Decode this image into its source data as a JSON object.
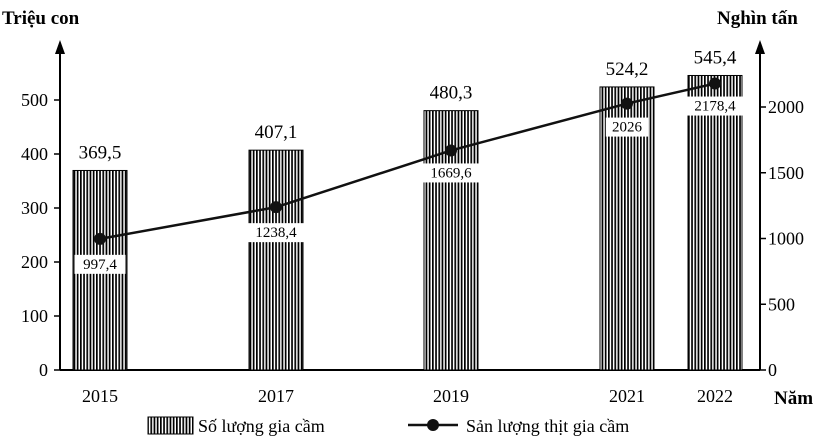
{
  "chart_data": {
    "type": "bar",
    "title": "",
    "categories": [
      "2015",
      "2017",
      "2019",
      "2021",
      "2022"
    ],
    "xlabel": "Năm",
    "y_left": {
      "label": "Triệu con",
      "ylim": [
        0,
        550
      ],
      "ticks": [
        "0",
        "100",
        "200",
        "300",
        "400",
        "500"
      ],
      "tick_values": [
        0,
        100,
        200,
        300,
        400,
        500
      ]
    },
    "y_right": {
      "label": "Nghìn tấn",
      "ylim": [
        0,
        2300
      ],
      "ticks": [
        "0",
        "500",
        "1000",
        "1500",
        "2000"
      ],
      "tick_values": [
        0,
        500,
        1000,
        1500,
        2000
      ]
    },
    "series": [
      {
        "name": "Số lượng gia cầm",
        "kind": "bar",
        "axis": "left",
        "values": [
          369.5,
          407.1,
          480.3,
          524.2,
          545.4
        ],
        "labels": [
          "369,5",
          "407,1",
          "480,3",
          "524,2",
          "545,4"
        ]
      },
      {
        "name": "Sản lượng thịt gia cầm",
        "kind": "line",
        "axis": "right",
        "values": [
          997.4,
          1238.4,
          1669.6,
          2026,
          2178.4
        ],
        "labels": [
          "997,4",
          "1238,4",
          "1669,6",
          "2026",
          "2178,4"
        ]
      }
    ],
    "grid": false,
    "legend": "bottom",
    "colors": {
      "bar_stripe": "#000000",
      "bar_fill": "#ffffff",
      "line": "#111111"
    }
  }
}
